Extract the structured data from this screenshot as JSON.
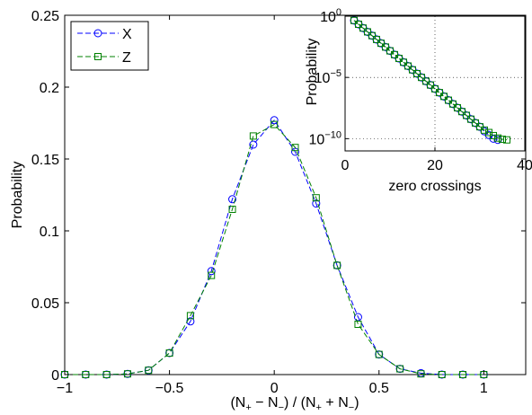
{
  "chart_data": [
    {
      "type": "line",
      "xlabel": "(N₊ − N₋) / (N₊ + N₋)",
      "ylabel": "Probability",
      "xlim": [
        -1,
        1.2
      ],
      "ylim": [
        0,
        0.25
      ],
      "xticks": [
        -1,
        -0.5,
        0,
        0.5,
        1
      ],
      "xtick_labels": [
        "−1",
        "−0.5",
        "0",
        "0.5",
        "1"
      ],
      "yticks": [
        0,
        0.05,
        0.1,
        0.15,
        0.2,
        0.25
      ],
      "ytick_labels": [
        "0",
        "0.05",
        "0.1",
        "0.15",
        "0.2",
        "0.25"
      ],
      "grid": false,
      "legend_position": "top-left",
      "series": [
        {
          "name": "X",
          "color": "#0000ff",
          "marker": "circle",
          "line_style": "dashed",
          "x": [
            -1.0,
            -0.9,
            -0.8,
            -0.7,
            -0.6,
            -0.5,
            -0.4,
            -0.3,
            -0.2,
            -0.1,
            0.0,
            0.1,
            0.2,
            0.3,
            0.4,
            0.5,
            0.6,
            0.7,
            0.8,
            0.9,
            1.0
          ],
          "y": [
            0.0,
            0.0,
            0.0,
            0.0005,
            0.003,
            0.015,
            0.037,
            0.072,
            0.122,
            0.16,
            0.177,
            0.155,
            0.119,
            0.076,
            0.04,
            0.014,
            0.004,
            0.001,
            0.0,
            0.0,
            0.0
          ]
        },
        {
          "name": "Z",
          "color": "#008000",
          "marker": "square",
          "line_style": "dashed",
          "x": [
            -1.0,
            -0.9,
            -0.8,
            -0.7,
            -0.6,
            -0.5,
            -0.4,
            -0.3,
            -0.2,
            -0.1,
            0.0,
            0.1,
            0.2,
            0.3,
            0.4,
            0.5,
            0.6,
            0.7,
            0.8,
            0.9,
            1.0
          ],
          "y": [
            0.0,
            0.0,
            0.0,
            0.0005,
            0.003,
            0.015,
            0.041,
            0.069,
            0.115,
            0.166,
            0.174,
            0.158,
            0.123,
            0.076,
            0.035,
            0.014,
            0.004,
            0.0005,
            0.0,
            0.0,
            0.0
          ]
        }
      ]
    },
    {
      "type": "line",
      "xlabel": "zero crossings",
      "ylabel": "Probability",
      "xlim": [
        0,
        40
      ],
      "ylim_log10": [
        -11,
        0
      ],
      "y_scale": "log",
      "xticks": [
        0,
        20,
        40
      ],
      "xtick_labels": [
        "0",
        "20",
        "40"
      ],
      "ytick_exponents": [
        0,
        -5,
        -10
      ],
      "ytick_base": "10",
      "grid": true,
      "series": [
        {
          "name": "X",
          "color": "#0000ff",
          "marker": "circle",
          "line_style": "dashed",
          "x": [
            2,
            3,
            4,
            5,
            6,
            7,
            8,
            9,
            10,
            11,
            12,
            13,
            14,
            15,
            16,
            17,
            18,
            19,
            20,
            21,
            22,
            23,
            24,
            25,
            26,
            27,
            28,
            29,
            30,
            31,
            32,
            33,
            34
          ],
          "log10_y": [
            -0.35,
            -0.66,
            -0.97,
            -1.28,
            -1.59,
            -1.9,
            -2.21,
            -2.52,
            -2.83,
            -3.14,
            -3.45,
            -3.76,
            -4.07,
            -4.38,
            -4.69,
            -5.0,
            -5.31,
            -5.62,
            -5.93,
            -6.24,
            -6.55,
            -6.86,
            -7.17,
            -7.48,
            -7.79,
            -8.1,
            -8.41,
            -8.72,
            -9.03,
            -9.4,
            -9.7,
            -10.0,
            -10.1
          ]
        },
        {
          "name": "Z",
          "color": "#008000",
          "marker": "square",
          "line_style": "dashed",
          "x": [
            2,
            3,
            4,
            5,
            6,
            7,
            8,
            9,
            10,
            11,
            12,
            13,
            14,
            15,
            16,
            17,
            18,
            19,
            20,
            21,
            22,
            23,
            24,
            25,
            26,
            27,
            28,
            29,
            30,
            31,
            32,
            33,
            34,
            35,
            36
          ],
          "log10_y": [
            -0.35,
            -0.66,
            -0.97,
            -1.28,
            -1.59,
            -1.9,
            -2.21,
            -2.52,
            -2.83,
            -3.14,
            -3.45,
            -3.76,
            -4.07,
            -4.38,
            -4.69,
            -5.0,
            -5.31,
            -5.62,
            -5.93,
            -6.24,
            -6.55,
            -6.86,
            -7.17,
            -7.48,
            -7.79,
            -8.1,
            -8.41,
            -8.72,
            -9.03,
            -9.3,
            -9.5,
            -9.75,
            -9.95,
            -10.05,
            -10.1
          ]
        }
      ]
    }
  ]
}
